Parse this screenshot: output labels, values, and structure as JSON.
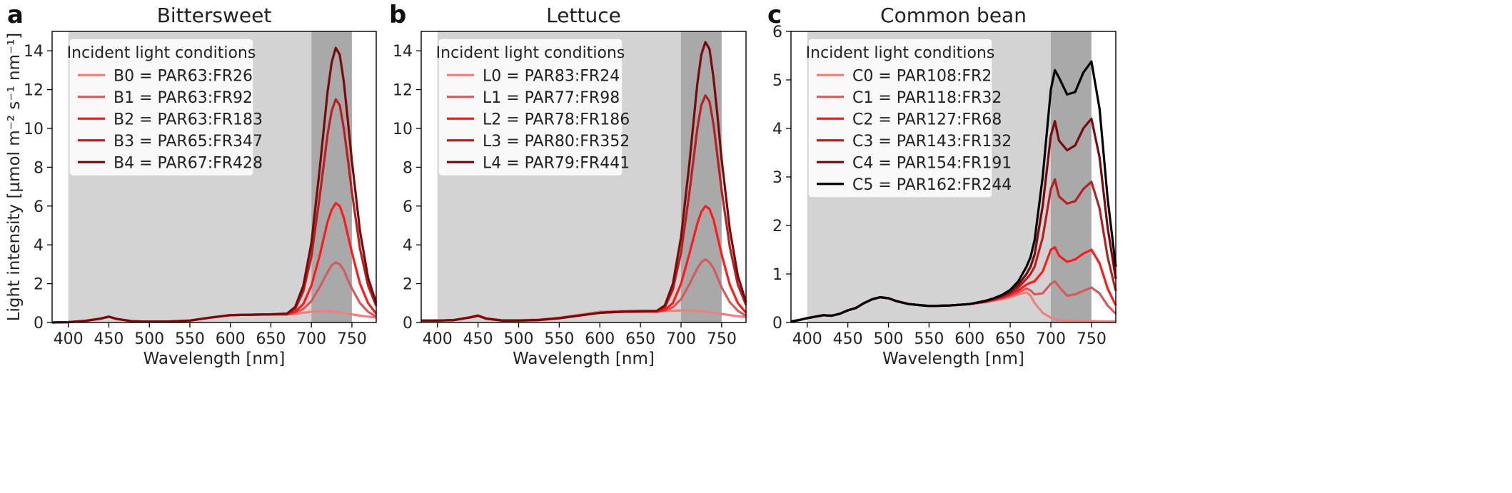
{
  "figure": {
    "ylabel": "Light intensity [µmol m⁻² s⁻¹ nm⁻¹]"
  },
  "chart_data": [
    {
      "type": "line",
      "panel_letter": "a",
      "title": "Bittersweet",
      "xlabel": "Wavelength [nm]",
      "ylabel": "Light intensity [µmol m⁻² s⁻¹ nm⁻¹]",
      "xlim": [
        380,
        780
      ],
      "ylim": [
        0,
        15
      ],
      "xticks": [
        400,
        450,
        500,
        550,
        600,
        650,
        700,
        750
      ],
      "yticks": [
        0,
        2,
        4,
        6,
        8,
        10,
        12,
        14
      ],
      "shaded_regions": [
        {
          "range": [
            400,
            700
          ],
          "color": "#d3d3d3"
        },
        {
          "range": [
            700,
            750
          ],
          "color": "#a9a9a9"
        }
      ],
      "legend": {
        "title": "Incident light conditions",
        "position": "top-left"
      },
      "x": [
        380,
        400,
        420,
        440,
        450,
        460,
        480,
        500,
        525,
        550,
        575,
        600,
        625,
        650,
        670,
        680,
        690,
        700,
        710,
        720,
        725,
        730,
        735,
        740,
        745,
        750,
        760,
        770,
        780
      ],
      "series": [
        {
          "name": "B0 = PAR63:FR26",
          "color": "#f08080",
          "values": [
            0,
            0.02,
            0.08,
            0.2,
            0.3,
            0.18,
            0.06,
            0.04,
            0.05,
            0.1,
            0.25,
            0.38,
            0.4,
            0.42,
            0.42,
            0.45,
            0.5,
            0.55,
            0.58,
            0.58,
            0.57,
            0.55,
            0.52,
            0.48,
            0.45,
            0.42,
            0.35,
            0.3,
            0.25
          ]
        },
        {
          "name": "B1 = PAR63:FR92",
          "color": "#d65a5a",
          "values": [
            0,
            0.02,
            0.08,
            0.2,
            0.3,
            0.18,
            0.06,
            0.04,
            0.05,
            0.1,
            0.25,
            0.38,
            0.4,
            0.42,
            0.42,
            0.5,
            0.7,
            1.1,
            1.8,
            2.6,
            2.95,
            3.1,
            3.0,
            2.7,
            2.2,
            1.75,
            1.0,
            0.55,
            0.3
          ]
        },
        {
          "name": "B2 = PAR63:FR183",
          "color": "#ff1a1a",
          "values": [
            0,
            0.02,
            0.08,
            0.2,
            0.3,
            0.18,
            0.06,
            0.04,
            0.05,
            0.1,
            0.25,
            0.38,
            0.4,
            0.42,
            0.42,
            0.55,
            0.95,
            1.9,
            3.4,
            5.2,
            5.8,
            6.15,
            6.0,
            5.4,
            4.5,
            3.6,
            2.0,
            1.0,
            0.45
          ]
        },
        {
          "name": "B3 = PAR65:FR347",
          "color": "#b82020",
          "values": [
            0,
            0.02,
            0.08,
            0.2,
            0.3,
            0.18,
            0.06,
            0.04,
            0.05,
            0.1,
            0.25,
            0.38,
            0.4,
            0.42,
            0.45,
            0.7,
            1.6,
            3.4,
            6.4,
            9.7,
            10.9,
            11.5,
            11.2,
            10.0,
            8.4,
            6.7,
            3.8,
            1.9,
            0.85
          ]
        },
        {
          "name": "B4 = PAR67:FR428",
          "color": "#7a0a0a",
          "values": [
            0,
            0.02,
            0.08,
            0.2,
            0.3,
            0.18,
            0.06,
            0.04,
            0.05,
            0.1,
            0.25,
            0.38,
            0.4,
            0.42,
            0.46,
            0.8,
            1.9,
            4.1,
            7.8,
            11.9,
            13.4,
            14.15,
            13.8,
            12.4,
            10.4,
            8.3,
            4.7,
            2.3,
            1.0
          ]
        }
      ]
    },
    {
      "type": "line",
      "panel_letter": "b",
      "title": "Lettuce",
      "xlabel": "Wavelength [nm]",
      "ylabel": "",
      "xlim": [
        380,
        780
      ],
      "ylim": [
        0,
        15
      ],
      "xticks": [
        400,
        450,
        500,
        550,
        600,
        650,
        700,
        750
      ],
      "yticks": [
        0,
        2,
        4,
        6,
        8,
        10,
        12,
        14
      ],
      "shaded_regions": [
        {
          "range": [
            400,
            700
          ],
          "color": "#d3d3d3"
        },
        {
          "range": [
            700,
            750
          ],
          "color": "#a9a9a9"
        }
      ],
      "legend": {
        "title": "Incident light conditions",
        "position": "top-left"
      },
      "x": [
        380,
        400,
        420,
        440,
        450,
        460,
        480,
        500,
        525,
        550,
        575,
        600,
        625,
        650,
        670,
        680,
        690,
        700,
        710,
        720,
        725,
        730,
        735,
        740,
        745,
        750,
        760,
        770,
        780
      ],
      "series": [
        {
          "name": "L0 = PAR83:FR24",
          "color": "#f08080",
          "values": [
            0.1,
            0.1,
            0.12,
            0.28,
            0.38,
            0.22,
            0.12,
            0.12,
            0.15,
            0.25,
            0.4,
            0.55,
            0.6,
            0.62,
            0.6,
            0.6,
            0.6,
            0.62,
            0.62,
            0.6,
            0.58,
            0.56,
            0.53,
            0.5,
            0.47,
            0.44,
            0.38,
            0.32,
            0.28
          ]
        },
        {
          "name": "L1 = PAR77:FR98",
          "color": "#d65a5a",
          "values": [
            0.1,
            0.1,
            0.12,
            0.26,
            0.35,
            0.2,
            0.1,
            0.1,
            0.13,
            0.22,
            0.36,
            0.5,
            0.55,
            0.57,
            0.55,
            0.6,
            0.78,
            1.2,
            1.95,
            2.8,
            3.1,
            3.25,
            3.1,
            2.8,
            2.3,
            1.8,
            1.05,
            0.6,
            0.35
          ]
        },
        {
          "name": "L2 = PAR78:FR186",
          "color": "#ff1a1a",
          "values": [
            0.1,
            0.1,
            0.12,
            0.26,
            0.35,
            0.2,
            0.1,
            0.1,
            0.13,
            0.22,
            0.36,
            0.5,
            0.55,
            0.57,
            0.56,
            0.65,
            1.0,
            2.0,
            3.5,
            5.1,
            5.7,
            6.0,
            5.85,
            5.3,
            4.4,
            3.5,
            1.95,
            1.0,
            0.5
          ]
        },
        {
          "name": "L3 = PAR80:FR352",
          "color": "#b82020",
          "values": [
            0.1,
            0.1,
            0.12,
            0.26,
            0.35,
            0.2,
            0.1,
            0.1,
            0.13,
            0.22,
            0.36,
            0.5,
            0.55,
            0.57,
            0.58,
            0.78,
            1.7,
            3.6,
            6.6,
            10.0,
            11.2,
            11.7,
            11.4,
            10.2,
            8.5,
            6.8,
            3.9,
            1.95,
            0.9
          ]
        },
        {
          "name": "L4 = PAR79:FR441",
          "color": "#7a0a0a",
          "values": [
            0.1,
            0.1,
            0.12,
            0.26,
            0.35,
            0.2,
            0.1,
            0.1,
            0.13,
            0.22,
            0.36,
            0.5,
            0.55,
            0.57,
            0.6,
            0.88,
            2.0,
            4.4,
            8.1,
            12.3,
            13.8,
            14.45,
            14.1,
            12.6,
            10.6,
            8.4,
            4.8,
            2.4,
            1.05
          ]
        }
      ]
    },
    {
      "type": "line",
      "panel_letter": "c",
      "title": "Common bean",
      "xlabel": "Wavelength [nm]",
      "ylabel": "",
      "xlim": [
        380,
        780
      ],
      "ylim": [
        0,
        6
      ],
      "xticks": [
        400,
        450,
        500,
        550,
        600,
        650,
        700,
        750
      ],
      "yticks": [
        0,
        1,
        2,
        3,
        4,
        5,
        6
      ],
      "shaded_regions": [
        {
          "range": [
            400,
            700
          ],
          "color": "#d3d3d3"
        },
        {
          "range": [
            700,
            750
          ],
          "color": "#a9a9a9"
        }
      ],
      "legend": {
        "title": "Incident light conditions",
        "position": "top-left"
      },
      "x": [
        380,
        390,
        400,
        410,
        420,
        430,
        440,
        450,
        460,
        470,
        480,
        490,
        500,
        510,
        525,
        550,
        575,
        600,
        620,
        630,
        640,
        650,
        660,
        670,
        675,
        680,
        690,
        700,
        705,
        710,
        720,
        730,
        740,
        750,
        760,
        770,
        780
      ],
      "series": [
        {
          "name": "C0 = PAR108:FR2",
          "color": "#f08080",
          "values": [
            0.02,
            0.05,
            0.09,
            0.12,
            0.15,
            0.14,
            0.18,
            0.25,
            0.3,
            0.4,
            0.48,
            0.52,
            0.5,
            0.44,
            0.38,
            0.34,
            0.35,
            0.38,
            0.42,
            0.45,
            0.48,
            0.52,
            0.58,
            0.62,
            0.55,
            0.4,
            0.2,
            0.1,
            0.07,
            0.05,
            0.04,
            0.03,
            0.03,
            0.03,
            0.02,
            0.02,
            0.02
          ]
        },
        {
          "name": "C1 = PAR118:FR32",
          "color": "#d65a5a",
          "values": [
            0.02,
            0.05,
            0.09,
            0.12,
            0.15,
            0.14,
            0.18,
            0.25,
            0.3,
            0.4,
            0.48,
            0.52,
            0.5,
            0.44,
            0.38,
            0.34,
            0.35,
            0.38,
            0.42,
            0.46,
            0.5,
            0.55,
            0.62,
            0.7,
            0.66,
            0.58,
            0.6,
            0.8,
            0.85,
            0.74,
            0.55,
            0.58,
            0.65,
            0.72,
            0.6,
            0.35,
            0.18
          ]
        },
        {
          "name": "C2 = PAR127:FR68",
          "color": "#ff1a1a",
          "values": [
            0.02,
            0.05,
            0.09,
            0.12,
            0.15,
            0.14,
            0.18,
            0.25,
            0.3,
            0.4,
            0.48,
            0.52,
            0.5,
            0.44,
            0.38,
            0.34,
            0.35,
            0.38,
            0.43,
            0.47,
            0.51,
            0.57,
            0.66,
            0.78,
            0.82,
            0.85,
            1.05,
            1.5,
            1.55,
            1.38,
            1.25,
            1.3,
            1.42,
            1.5,
            1.22,
            0.7,
            0.35
          ]
        },
        {
          "name": "C3 = PAR143:FR132",
          "color": "#b82020",
          "values": [
            0.02,
            0.05,
            0.09,
            0.12,
            0.15,
            0.14,
            0.18,
            0.25,
            0.3,
            0.4,
            0.48,
            0.52,
            0.5,
            0.44,
            0.38,
            0.34,
            0.35,
            0.38,
            0.44,
            0.48,
            0.53,
            0.6,
            0.72,
            0.9,
            1.0,
            1.15,
            1.75,
            2.75,
            2.95,
            2.6,
            2.45,
            2.5,
            2.75,
            2.9,
            2.35,
            1.35,
            0.65
          ]
        },
        {
          "name": "C4 = PAR154:FR191",
          "color": "#7a0a0a",
          "values": [
            0.02,
            0.05,
            0.09,
            0.12,
            0.15,
            0.14,
            0.18,
            0.25,
            0.3,
            0.4,
            0.48,
            0.52,
            0.5,
            0.44,
            0.38,
            0.34,
            0.35,
            0.38,
            0.44,
            0.49,
            0.55,
            0.63,
            0.78,
            1.0,
            1.15,
            1.4,
            2.4,
            3.85,
            4.15,
            3.75,
            3.55,
            3.65,
            4.0,
            4.2,
            3.4,
            1.95,
            0.9
          ]
        },
        {
          "name": "C5 = PAR162:FR244",
          "color": "#000000",
          "values": [
            0.02,
            0.05,
            0.09,
            0.12,
            0.15,
            0.14,
            0.18,
            0.25,
            0.3,
            0.4,
            0.48,
            0.52,
            0.5,
            0.44,
            0.38,
            0.34,
            0.35,
            0.38,
            0.45,
            0.5,
            0.57,
            0.67,
            0.85,
            1.15,
            1.35,
            1.7,
            3.0,
            4.8,
            5.2,
            5.05,
            4.7,
            4.75,
            5.15,
            5.38,
            4.4,
            2.55,
            1.15
          ]
        }
      ]
    }
  ]
}
